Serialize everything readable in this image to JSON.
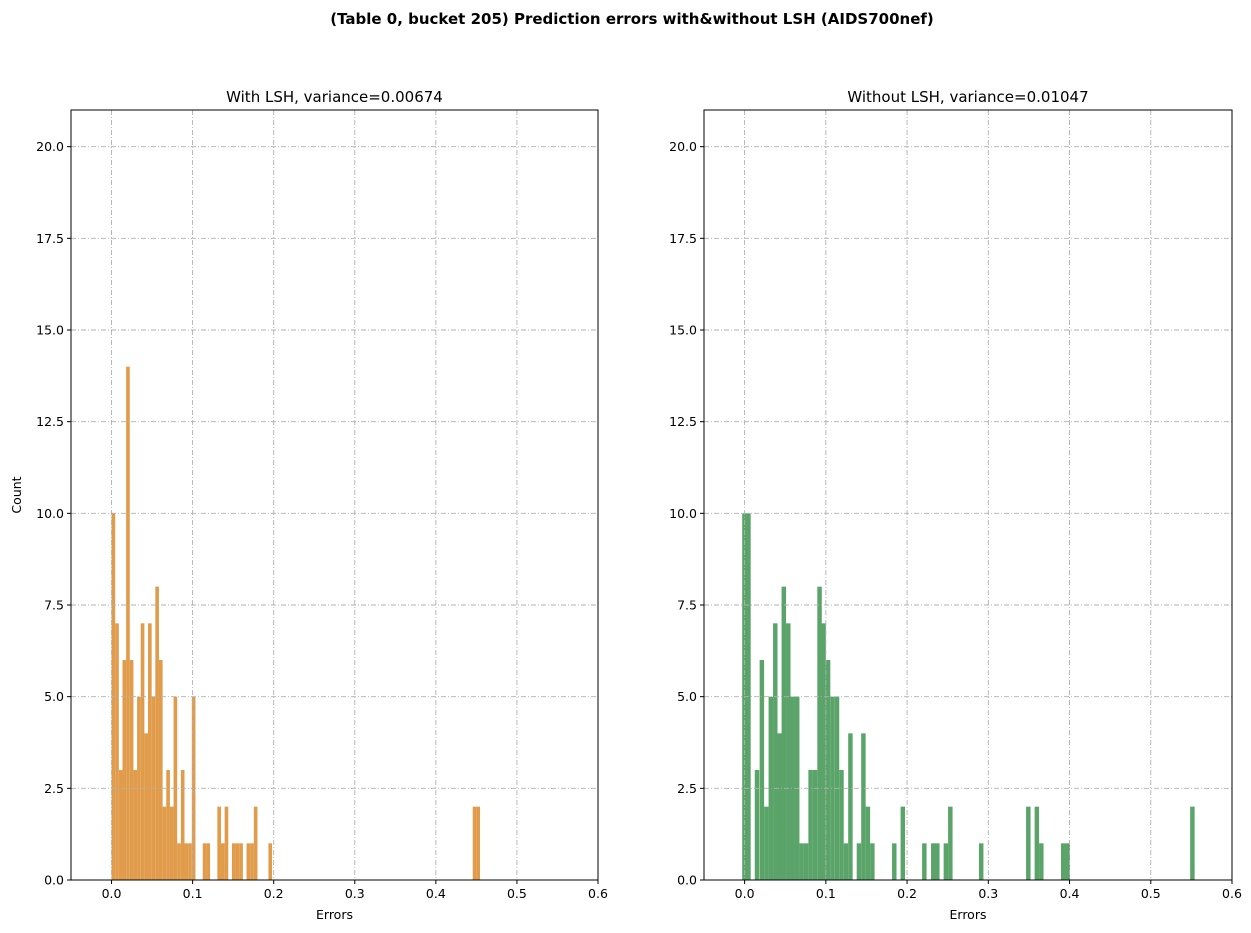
{
  "figure": {
    "suptitle": "(Table 0, bucket 205) Prediction errors with&without LSH (AIDS700nef)"
  },
  "chart_data": [
    {
      "type": "histogram",
      "title": "With LSH, variance=0.00674",
      "xlabel": "Errors",
      "ylabel": "Count",
      "xlim": [
        -0.05,
        0.6
      ],
      "ylim": [
        0,
        21
      ],
      "xticks": [
        0.0,
        0.1,
        0.2,
        0.3,
        0.4,
        0.5,
        0.6
      ],
      "xtick_labels": [
        "0.0",
        "0.1",
        "0.2",
        "0.3",
        "0.4",
        "0.5",
        "0.6"
      ],
      "yticks": [
        0,
        2.5,
        5,
        7.5,
        10,
        12.5,
        15,
        17.5,
        20
      ],
      "ytick_labels": [
        "0.0",
        "2.5",
        "5.0",
        "7.5",
        "10.0",
        "12.5",
        "15.0",
        "17.5",
        "20.0"
      ],
      "grid": true,
      "color": "#e19c4b",
      "bin_width": 0.00449,
      "bins": [
        [
          0.0,
          10
        ],
        [
          0.0045,
          7
        ],
        [
          0.009,
          3
        ],
        [
          0.0135,
          6
        ],
        [
          0.018,
          14
        ],
        [
          0.0225,
          6
        ],
        [
          0.027,
          3
        ],
        [
          0.0315,
          5
        ],
        [
          0.036,
          7
        ],
        [
          0.0405,
          4
        ],
        [
          0.045,
          7
        ],
        [
          0.0495,
          5
        ],
        [
          0.054,
          8
        ],
        [
          0.0585,
          6
        ],
        [
          0.063,
          2
        ],
        [
          0.0675,
          3
        ],
        [
          0.072,
          2
        ],
        [
          0.0765,
          5
        ],
        [
          0.081,
          1
        ],
        [
          0.0855,
          3
        ],
        [
          0.09,
          1
        ],
        [
          0.0945,
          1
        ],
        [
          0.099,
          5
        ],
        [
          0.1125,
          1
        ],
        [
          0.117,
          1
        ],
        [
          0.1305,
          2
        ],
        [
          0.135,
          1
        ],
        [
          0.1395,
          2
        ],
        [
          0.1485,
          1
        ],
        [
          0.153,
          1
        ],
        [
          0.1575,
          1
        ],
        [
          0.1665,
          1
        ],
        [
          0.171,
          1
        ],
        [
          0.1755,
          2
        ],
        [
          0.1935,
          1
        ],
        [
          0.4455,
          2
        ],
        [
          0.45,
          2
        ]
      ]
    },
    {
      "type": "histogram",
      "title": "Without LSH, variance=0.01047",
      "xlabel": "Errors",
      "ylabel": "",
      "xlim": [
        -0.05,
        0.6
      ],
      "ylim": [
        0,
        21
      ],
      "xticks": [
        0.0,
        0.1,
        0.2,
        0.3,
        0.4,
        0.5,
        0.6
      ],
      "xtick_labels": [
        "0.0",
        "0.1",
        "0.2",
        "0.3",
        "0.4",
        "0.5",
        "0.6"
      ],
      "yticks": [
        0,
        2.5,
        5,
        7.5,
        10,
        12.5,
        15,
        17.5,
        20
      ],
      "ytick_labels": [
        "0.0",
        "2.5",
        "5.0",
        "7.5",
        "10.0",
        "12.5",
        "15.0",
        "17.5",
        "20.0"
      ],
      "grid": true,
      "color": "#5aa46a",
      "bin_width": 0.0055,
      "bins": [
        [
          -0.003,
          10
        ],
        [
          0.002,
          10
        ],
        [
          0.0125,
          3
        ],
        [
          0.0185,
          6
        ],
        [
          0.024,
          2
        ],
        [
          0.0295,
          5
        ],
        [
          0.035,
          7
        ],
        [
          0.0405,
          4
        ],
        [
          0.0455,
          8
        ],
        [
          0.051,
          7
        ],
        [
          0.0565,
          5
        ],
        [
          0.062,
          5
        ],
        [
          0.0675,
          1
        ],
        [
          0.073,
          1
        ],
        [
          0.0785,
          3
        ],
        [
          0.084,
          3
        ],
        [
          0.0895,
          8
        ],
        [
          0.0945,
          7
        ],
        [
          0.1,
          6
        ],
        [
          0.1055,
          5
        ],
        [
          0.111,
          5
        ],
        [
          0.1165,
          3
        ],
        [
          0.122,
          1
        ],
        [
          0.1275,
          4
        ],
        [
          0.138,
          1
        ],
        [
          0.1435,
          4
        ],
        [
          0.149,
          2
        ],
        [
          0.1545,
          1
        ],
        [
          0.1815,
          1
        ],
        [
          0.192,
          2
        ],
        [
          0.2185,
          1
        ],
        [
          0.2295,
          1
        ],
        [
          0.2345,
          1
        ],
        [
          0.245,
          1
        ],
        [
          0.2505,
          2
        ],
        [
          0.2885,
          1
        ],
        [
          0.3465,
          2
        ],
        [
          0.357,
          2
        ],
        [
          0.3625,
          1
        ],
        [
          0.3895,
          1
        ],
        [
          0.395,
          1
        ],
        [
          0.5485,
          2
        ]
      ]
    }
  ]
}
